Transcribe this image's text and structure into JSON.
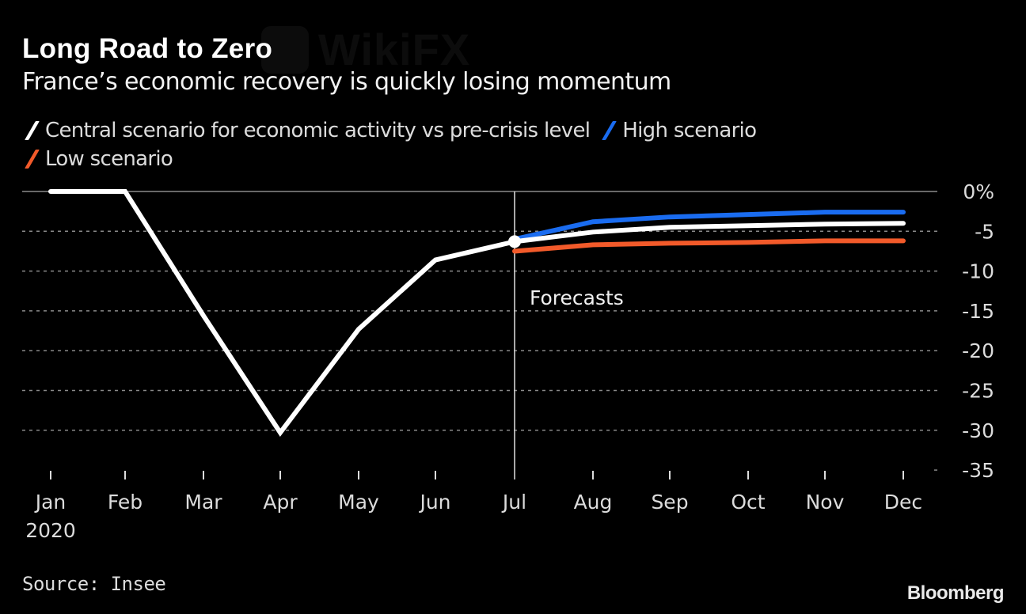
{
  "header": {
    "title": "Long Road to Zero",
    "subtitle": "France’s economic recovery is quickly losing momentum"
  },
  "legend": [
    {
      "label": "Central scenario for economic activity vs pre-crisis level",
      "color": "#ffffff"
    },
    {
      "label": "High scenario",
      "color": "#1a6cf0"
    },
    {
      "label": "Low scenario",
      "color": "#f25a2a"
    }
  ],
  "footer": {
    "source": "Source: Insee",
    "brand": "Bloomberg",
    "watermark": "WikiFX"
  },
  "chart_data": {
    "type": "line",
    "title": "Long Road to Zero",
    "subtitle": "France’s economic recovery is quickly losing momentum",
    "xlabel": "",
    "ylabel": "",
    "categories": [
      "Jan",
      "Feb",
      "Mar",
      "Apr",
      "May",
      "Jun",
      "Jul",
      "Aug",
      "Sep",
      "Oct",
      "Nov",
      "Dec"
    ],
    "x_tick_labels": [
      "Jan",
      "Feb",
      "Mar",
      "Apr",
      "May",
      "Jun",
      "Jul",
      "Aug",
      "Sep",
      "Oct",
      "Nov",
      "Dec"
    ],
    "x_year_label": "2020",
    "y_tick_labels": [
      "0%",
      "-5",
      "-10",
      "-15",
      "-20",
      "-25",
      "-30",
      "-35"
    ],
    "y_ticks": [
      0,
      -5,
      -10,
      -15,
      -20,
      -25,
      -30,
      -35
    ],
    "ylim": [
      -35,
      0
    ],
    "y_axis_side": "right",
    "grid": true,
    "legend_position": "top-left",
    "series": [
      {
        "name": "Central scenario for economic activity vs pre-crisis level",
        "color": "#ffffff",
        "values": [
          0,
          0,
          -15.6,
          -30.3,
          -17.3,
          -8.6,
          -6.3,
          -5.1,
          -4.5,
          -4.3,
          -4.1,
          -4.0
        ]
      },
      {
        "name": "High scenario",
        "color": "#1a6cf0",
        "values": [
          null,
          null,
          null,
          null,
          null,
          null,
          -6.0,
          -3.8,
          -3.2,
          -2.9,
          -2.6,
          -2.6
        ]
      },
      {
        "name": "Low scenario",
        "color": "#f25a2a",
        "values": [
          null,
          null,
          null,
          null,
          null,
          null,
          -7.5,
          -6.7,
          -6.5,
          -6.4,
          -6.2,
          -6.2
        ]
      }
    ],
    "annotations": [
      {
        "text": "Forecasts",
        "at_category": "Jul",
        "type": "vertical-line"
      }
    ]
  }
}
